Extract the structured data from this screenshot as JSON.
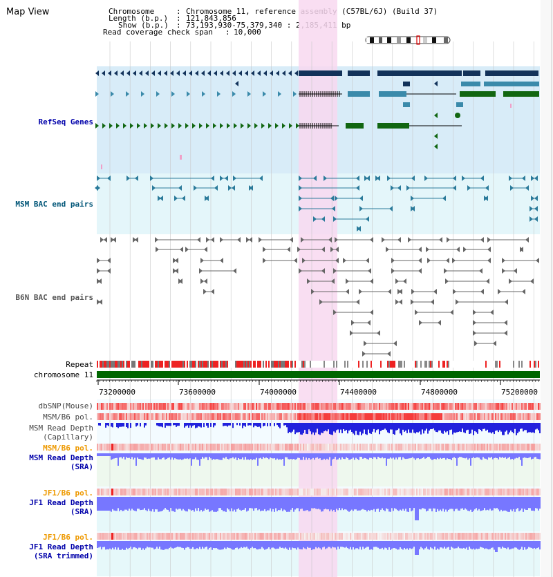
{
  "title": "Map View",
  "header": {
    "chromosome_label": "Chromosome",
    "chromosome_value": "Chromosome 11, reference assembly (C57BL/6J) (Build 37)",
    "length_label": "Length (b.p.)",
    "length_value": "121,843,856",
    "show_label": "Show (b.p.)",
    "show_value": "73,193,930-75,379,340 : 2,185,411 bp",
    "coverage_label": "Read coverage check span",
    "coverage_value": "10,000"
  },
  "tracks": {
    "refseq": "RefSeq Genes",
    "msm_bac": "MSM BAC end pairs",
    "b6n_bac": "B6N BAC end pairs",
    "repeat": "Repeat",
    "chromosome": "chromosome 11",
    "dbsnp": "dbSNP(Mouse)",
    "msm_b6_pol_1": "MSM/B6 pol.",
    "msm_depth_cap_1": "MSM Read Depth",
    "msm_depth_cap_2": "(Capillary)",
    "msm_b6_pol_2": "MSM/B6 pol.",
    "msm_depth_sra_1": "MSM Read Depth",
    "msm_depth_sra_2": "(SRA)",
    "jf1_b6_pol_1": "JF1/B6 pol.",
    "jf1_depth_sra_1": "JF1 Read Depth",
    "jf1_depth_sra_2": "(SRA)",
    "jf1_b6_pol_2": "JF1/B6 pol.",
    "jf1_depth_trim_1": "JF1 Read Depth",
    "jf1_depth_trim_2": "(SRA trimmed)"
  },
  "axis": {
    "ticks": [
      "73200000",
      "73600000",
      "74000000",
      "74400000",
      "74800000",
      "75200000"
    ]
  },
  "colors": {
    "refseq_bg": "#d8ecf8",
    "msm_bg": "#e4f6fa",
    "highlight": "#f8d8f0",
    "gene_dark": "#12325a",
    "gene_teal": "#3a8aaa",
    "gene_green": "#116611",
    "bac_teal": "#2a7a9a",
    "bac_gray": "#666666",
    "chromosome_bar": "#006600",
    "depth_cap": "#2222dd",
    "depth_sra": "#7777ff",
    "pol_red": "#ee2222",
    "label_black": "#000000",
    "label_blue": "#0000aa",
    "label_orange": "#ee9900",
    "label_teal": "#005577"
  }
}
